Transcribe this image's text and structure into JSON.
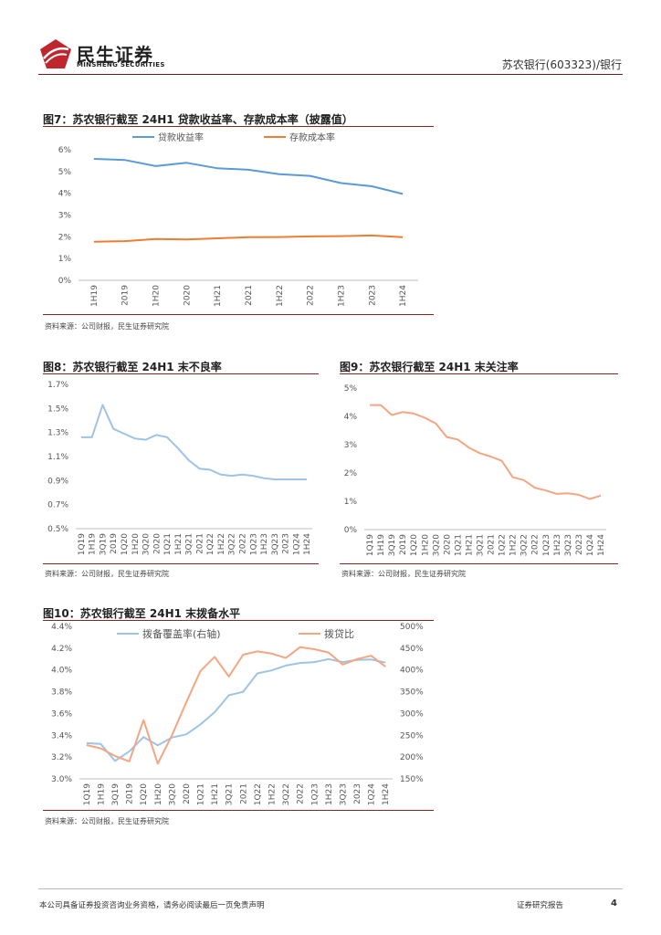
{
  "header": {
    "logo_cn": "民生证券",
    "logo_en": "MINSHENG SECURITIES",
    "right": "苏农银行(603323)/银行"
  },
  "footer": {
    "disclaimer": "本公司具备证券投资咨询业务资格，请务必阅读最后一页免责声明",
    "report_type": "证券研究报告",
    "page": "4"
  },
  "figures": [
    {
      "title": "图7：苏农银行截至 24H1 贷款收益率、存款成本率（披露值）",
      "source": "资料来源：公司财报，民生证券研究院"
    },
    {
      "title": "图8：苏农银行截至 24H1 末不良率",
      "source": "资料来源：公司财报，民生证券研究院"
    },
    {
      "title": "图9：苏农银行截至 24H1 末关注率",
      "source": "资料来源：公司财报，民生证券研究院"
    },
    {
      "title": "图10：苏农银行截至 24H1 末拨备水平",
      "source": "资料来源：公司财报，民生证券研究院"
    }
  ],
  "colors": {
    "blue": "#5b9bd5",
    "orange": "#ed7d31",
    "light_blue": "#9dc3e6",
    "light_orange": "#f4a582",
    "brand": "#c0262d"
  },
  "chart_data": [
    {
      "type": "line",
      "title": "图7：苏农银行截至 24H1 贷款收益率、存款成本率（披露值）",
      "categories": [
        "1H19",
        "2019",
        "1H20",
        "2020",
        "1H21",
        "2021",
        "1H22",
        "2022",
        "1H23",
        "2023",
        "1H24"
      ],
      "ylim": [
        0,
        6
      ],
      "yticks": [
        0,
        1,
        2,
        3,
        4,
        5,
        6
      ],
      "ytick_labels": [
        "0%",
        "1%",
        "2%",
        "3%",
        "4%",
        "5%",
        "6%"
      ],
      "legend": "top-left",
      "series": [
        {
          "name": "贷款收益率",
          "values": [
            5.58,
            5.53,
            5.25,
            5.4,
            5.15,
            5.08,
            4.88,
            4.8,
            4.47,
            4.32,
            3.97
          ]
        },
        {
          "name": "存款成本率",
          "values": [
            1.77,
            1.8,
            1.9,
            1.88,
            1.93,
            1.98,
            1.99,
            2.02,
            2.03,
            2.06,
            1.98
          ]
        }
      ]
    },
    {
      "type": "line",
      "title": "图8：苏农银行截至 24H1 末不良率",
      "categories": [
        "1Q19",
        "1H19",
        "3Q19",
        "2019",
        "1Q20",
        "1H20",
        "3Q20",
        "2020",
        "1Q21",
        "1H21",
        "3Q21",
        "2021",
        "1Q22",
        "1H22",
        "3Q22",
        "2022",
        "1Q23",
        "1H23",
        "3Q23",
        "2023",
        "1Q24",
        "1H24"
      ],
      "ylim": [
        0.5,
        1.7
      ],
      "yticks": [
        0.5,
        0.7,
        0.9,
        1.1,
        1.3,
        1.5,
        1.7
      ],
      "ytick_labels": [
        "0.5%",
        "0.7%",
        "0.9%",
        "1.1%",
        "1.3%",
        "1.5%",
        "1.7%"
      ],
      "series": [
        {
          "name": "不良率",
          "values": [
            1.26,
            1.26,
            1.53,
            1.33,
            1.29,
            1.25,
            1.24,
            1.28,
            1.26,
            1.17,
            1.07,
            1.0,
            0.99,
            0.95,
            0.94,
            0.95,
            0.94,
            0.92,
            0.91,
            0.91,
            0.91,
            0.91
          ]
        }
      ]
    },
    {
      "type": "line",
      "title": "图9：苏农银行截至 24H1 末关注率",
      "categories": [
        "1Q19",
        "1H19",
        "3Q19",
        "2019",
        "1Q20",
        "1H20",
        "3Q20",
        "2020",
        "1Q21",
        "1H21",
        "3Q21",
        "2021",
        "1Q22",
        "1H22",
        "3Q22",
        "2022",
        "1Q23",
        "1H23",
        "3Q23",
        "2023",
        "1Q24",
        "1H24"
      ],
      "ylim": [
        0,
        5
      ],
      "yticks": [
        0,
        1,
        2,
        3,
        4,
        5
      ],
      "ytick_labels": [
        "0%",
        "1%",
        "2%",
        "3%",
        "4%",
        "5%"
      ],
      "series": [
        {
          "name": "关注率",
          "values": [
            4.4,
            4.4,
            4.05,
            4.15,
            4.1,
            3.95,
            3.75,
            3.27,
            3.18,
            2.9,
            2.7,
            2.58,
            2.43,
            1.85,
            1.75,
            1.48,
            1.38,
            1.26,
            1.28,
            1.23,
            1.08,
            1.2
          ]
        }
      ]
    },
    {
      "type": "line",
      "title": "图10：苏农银行截至 24H1 末拨备水平",
      "categories": [
        "1Q19",
        "1H19",
        "3Q19",
        "2019",
        "1Q20",
        "1H20",
        "3Q20",
        "2020",
        "1Q21",
        "1H21",
        "3Q21",
        "2021",
        "1Q22",
        "1H22",
        "3Q22",
        "2022",
        "1Q23",
        "1H23",
        "3Q23",
        "2023",
        "1Q24",
        "1H24"
      ],
      "ylim_left": [
        3.0,
        4.4
      ],
      "yticks_left": [
        3.0,
        3.2,
        3.4,
        3.6,
        3.8,
        4.0,
        4.2,
        4.4
      ],
      "ytick_labels_left": [
        "3.0%",
        "3.2%",
        "3.4%",
        "3.6%",
        "3.8%",
        "4.0%",
        "4.2%",
        "4.4%"
      ],
      "ylim_right": [
        150,
        500
      ],
      "yticks_right": [
        150,
        200,
        250,
        300,
        350,
        400,
        450,
        500
      ],
      "ytick_labels_right": [
        "150%",
        "200%",
        "250%",
        "300%",
        "350%",
        "400%",
        "450%",
        "500%"
      ],
      "legend": "top",
      "series": [
        {
          "name": "拨备覆盖率(右轴)",
          "axis": "right",
          "values": [
            232,
            230,
            191,
            213,
            246,
            227,
            245,
            252,
            275,
            303,
            342,
            350,
            392,
            399,
            410,
            416,
            418,
            425,
            418,
            423,
            424,
            417
          ]
        },
        {
          "name": "拨贷比",
          "axis": "left",
          "values": [
            3.31,
            3.28,
            3.21,
            3.16,
            3.54,
            3.14,
            3.4,
            3.7,
            3.99,
            4.12,
            3.94,
            4.14,
            4.17,
            4.15,
            4.11,
            4.21,
            4.19,
            4.16,
            4.05,
            4.1,
            4.13,
            4.03
          ]
        }
      ]
    }
  ]
}
